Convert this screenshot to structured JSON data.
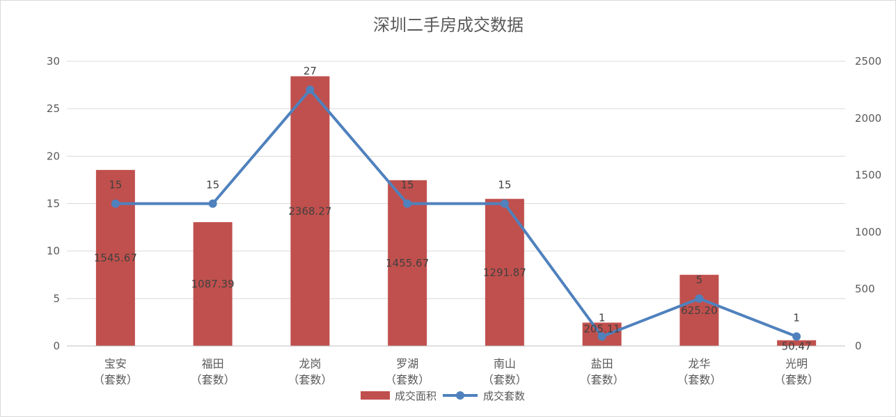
{
  "chart_data": {
    "type": "bar",
    "title": "深圳二手房成交数据",
    "categories": [
      "宝安",
      "福田",
      "龙岗",
      "罗湖",
      "南山",
      "盐田",
      "龙华",
      "光明"
    ],
    "category_sub": "（套数）",
    "left_axis": {
      "min": 0,
      "max": 30,
      "step": 5,
      "ticks": [
        "0",
        "5",
        "10",
        "15",
        "20",
        "25",
        "30"
      ]
    },
    "right_axis": {
      "min": 0,
      "max": 2500,
      "step": 500,
      "ticks": [
        "0",
        "500",
        "1000",
        "1500",
        "2000",
        "2500"
      ]
    },
    "series": [
      {
        "name": "成交面积",
        "type": "bar",
        "axis": "right",
        "color": "#c0504d",
        "values": [
          1545.67,
          1087.39,
          2368.27,
          1455.67,
          1291.87,
          205.11,
          625.2,
          50.47
        ],
        "labels": [
          "1545.67",
          "1087.39",
          "2368.27",
          "1455.67",
          "1291.87",
          "205.11",
          "625.20",
          "50.47"
        ]
      },
      {
        "name": "成交套数",
        "type": "line",
        "axis": "left",
        "color": "#4f81bd",
        "values": [
          15,
          15,
          27,
          15,
          15,
          1,
          5,
          1
        ],
        "labels": [
          "15",
          "15",
          "27",
          "15",
          "15",
          "1",
          "5",
          "1"
        ]
      }
    ],
    "grid": true,
    "legend_position": "bottom"
  }
}
